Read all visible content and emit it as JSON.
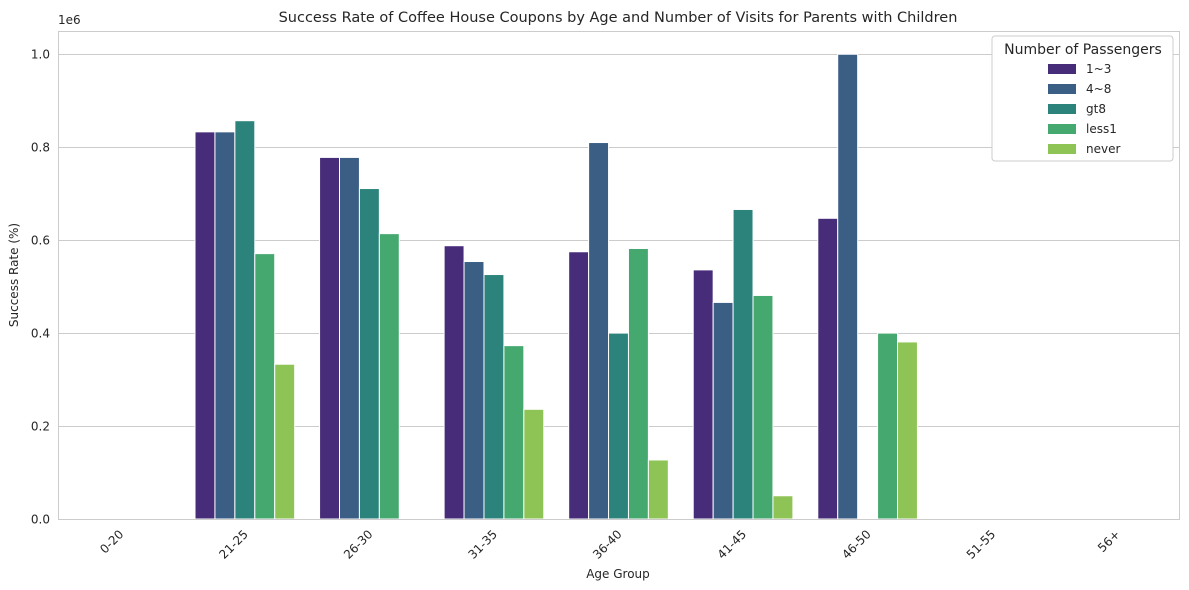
{
  "chart_data": {
    "type": "bar",
    "title": "Success Rate of Coffee House Coupons by Age and Number of Visits for Parents with Children",
    "xlabel": "Age Group",
    "ylabel": "Success Rate (%)",
    "y_offset_label": "1e6",
    "y_multiplier": 1000000,
    "ylim": [
      0,
      1.05
    ],
    "yticks": [
      0.0,
      0.2,
      0.4,
      0.6,
      0.8,
      1.0
    ],
    "ytick_labels": [
      "0.0",
      "0.2",
      "0.4",
      "0.6",
      "0.8",
      "1.0"
    ],
    "grid": "horizontal",
    "categories": [
      "0-20",
      "21-25",
      "26-30",
      "31-35",
      "36-40",
      "41-45",
      "46-50",
      "51-55",
      "56+"
    ],
    "legend": {
      "title": "Number of Passengers",
      "placement": "top-right"
    },
    "series": [
      {
        "name": "1~3",
        "color": "#472c7a",
        "values": [
          null,
          0.833,
          0.778,
          0.588,
          0.575,
          0.536,
          0.647,
          null,
          null
        ]
      },
      {
        "name": "4~8",
        "color": "#3b5e84",
        "values": [
          null,
          0.833,
          0.778,
          0.554,
          0.81,
          0.466,
          1.0,
          null,
          null
        ]
      },
      {
        "name": "gt8",
        "color": "#2b837c",
        "values": [
          null,
          0.857,
          0.711,
          0.526,
          0.4,
          0.666,
          null,
          null,
          null
        ]
      },
      {
        "name": "less1",
        "color": "#45a86f",
        "values": [
          null,
          0.571,
          0.614,
          0.373,
          0.582,
          0.481,
          0.4,
          null,
          null
        ]
      },
      {
        "name": "never",
        "color": "#8ec355",
        "values": [
          null,
          0.333,
          null,
          0.236,
          0.127,
          0.05,
          0.381,
          null,
          null
        ]
      }
    ]
  }
}
